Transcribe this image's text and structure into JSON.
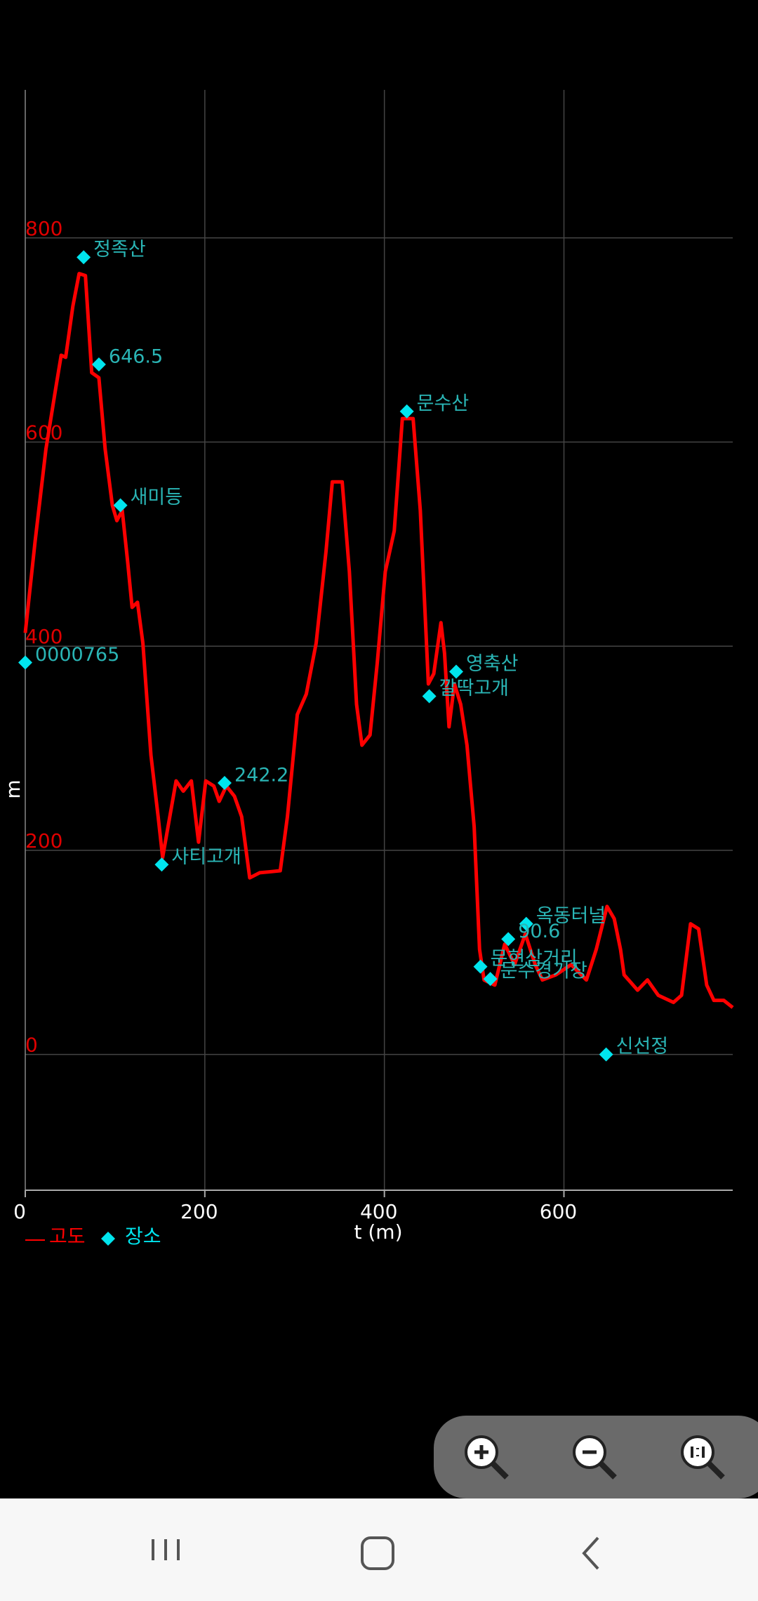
{
  "chart_data": {
    "type": "line",
    "y_label": "m",
    "x_label": "t (m)",
    "xlim": [
      0,
      788
    ],
    "ylim": [
      -133,
      945
    ],
    "xticks": [
      0,
      200,
      400,
      600
    ],
    "yticks": [
      0,
      200,
      400,
      600,
      800
    ],
    "grid": true,
    "series": [
      {
        "name": "고도",
        "color": "#ff0000",
        "style": "line",
        "x": [
          0,
          11,
          23,
          34,
          40,
          45,
          53,
          60,
          67,
          74,
          82,
          89,
          97,
          102,
          108,
          114,
          119,
          125,
          131,
          140,
          148,
          153,
          161,
          168,
          176,
          185,
          193,
          201,
          210,
          216,
          224,
          233,
          241,
          250,
          261,
          284,
          292,
          303,
          313,
          324,
          335,
          342,
          353,
          361,
          369,
          375,
          384,
          392,
          401,
          411,
          420,
          432,
          440,
          449,
          455,
          463,
          467,
          472,
          478,
          485,
          492,
          500,
          506,
          511,
          523,
          534,
          545,
          557,
          568,
          576,
          591,
          608,
          625,
          636,
          648,
          656,
          663,
          667,
          682,
          693,
          705,
          722,
          731,
          741,
          750,
          759,
          767,
          778,
          788
        ],
        "values": [
          413,
          503,
          593,
          653,
          685,
          683,
          733,
          765,
          763,
          668,
          663,
          593,
          538,
          523,
          533,
          483,
          438,
          443,
          403,
          293,
          233,
          193,
          233,
          268,
          258,
          268,
          208,
          268,
          263,
          248,
          263,
          253,
          233,
          173,
          178,
          180,
          233,
          333,
          353,
          403,
          493,
          561,
          561,
          473,
          343,
          303,
          313,
          383,
          473,
          513,
          623,
          623,
          533,
          363,
          373,
          423,
          393,
          321,
          363,
          343,
          303,
          223,
          103,
          73,
          68,
          108,
          88,
          118,
          88,
          73,
          78,
          88,
          73,
          103,
          145,
          133,
          103,
          78,
          63,
          73,
          58,
          51,
          58,
          128,
          123,
          68,
          53,
          53,
          46
        ]
      },
      {
        "name": "장소",
        "color": "#00e5ee",
        "style": "points",
        "x": [
          65,
          82,
          106,
          0,
          152,
          222,
          425,
          480,
          450,
          558,
          538,
          507,
          518,
          647
        ],
        "values": [
          781,
          676,
          538,
          384,
          186,
          266,
          630,
          375,
          351,
          128,
          113,
          86,
          74,
          0
        ],
        "labels": [
          "정족산",
          "646.5",
          "새미등",
          "0000765",
          "사티고개",
          "242.2",
          "문수산",
          "영축산",
          "깔딱고개",
          "옥동터널",
          "90.6",
          "문현삼거리",
          "문수경기장",
          "신선정"
        ]
      }
    ]
  }
}
